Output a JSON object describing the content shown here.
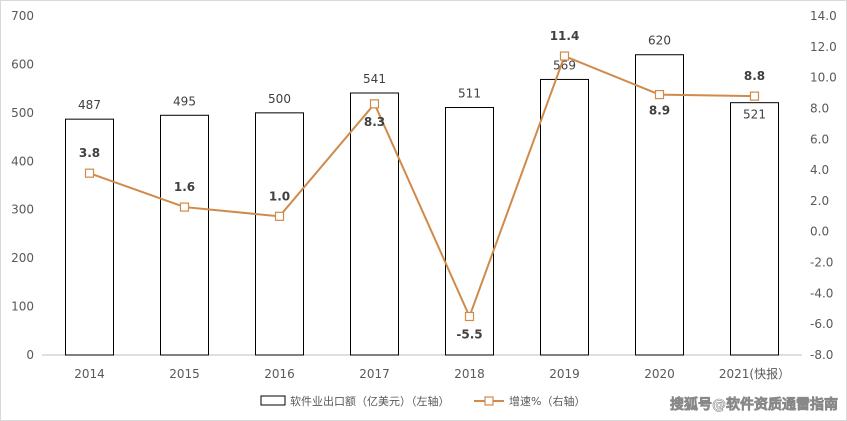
{
  "chart_data": {
    "type": "bar",
    "categories": [
      "2014",
      "2015",
      "2016",
      "2017",
      "2018",
      "2019",
      "2020",
      "2021(快报）"
    ],
    "series": [
      {
        "name": "软件业出口额（亿美元）（左轴）",
        "type": "bar",
        "axis": "left",
        "values": [
          487,
          495,
          500,
          541,
          511,
          569,
          620,
          521
        ],
        "labels": [
          "487",
          "495",
          "500",
          "541",
          "511",
          "569",
          "620",
          "521"
        ]
      },
      {
        "name": "增速%（右轴）",
        "type": "line",
        "axis": "right",
        "values": [
          3.8,
          1.6,
          1.0,
          8.3,
          -5.5,
          11.4,
          8.9,
          8.8
        ],
        "labels": [
          "3.8",
          "1.6",
          "1.0",
          "8.3",
          "-5.5",
          "11.4",
          "8.9",
          "8.8"
        ]
      }
    ],
    "left_axis": {
      "range": [
        0,
        700
      ],
      "ticks": [
        "0",
        "100",
        "200",
        "300",
        "400",
        "500",
        "600",
        "700"
      ]
    },
    "right_axis": {
      "range": [
        -8,
        14
      ],
      "ticks": [
        "-8.0",
        "-6.0",
        "-4.0",
        "-2.0",
        "0.0",
        "2.0",
        "4.0",
        "6.0",
        "8.0",
        "10.0",
        "12.0",
        "14.0"
      ]
    },
    "grid": false,
    "legend": "bottom-center",
    "colors": {
      "bar_fill": "#ffffff",
      "bar_stroke": "#000000",
      "line": "#d08a4a",
      "axis": "#bfbfbf"
    }
  },
  "watermark": "搜狐号@软件资质通雷指南"
}
